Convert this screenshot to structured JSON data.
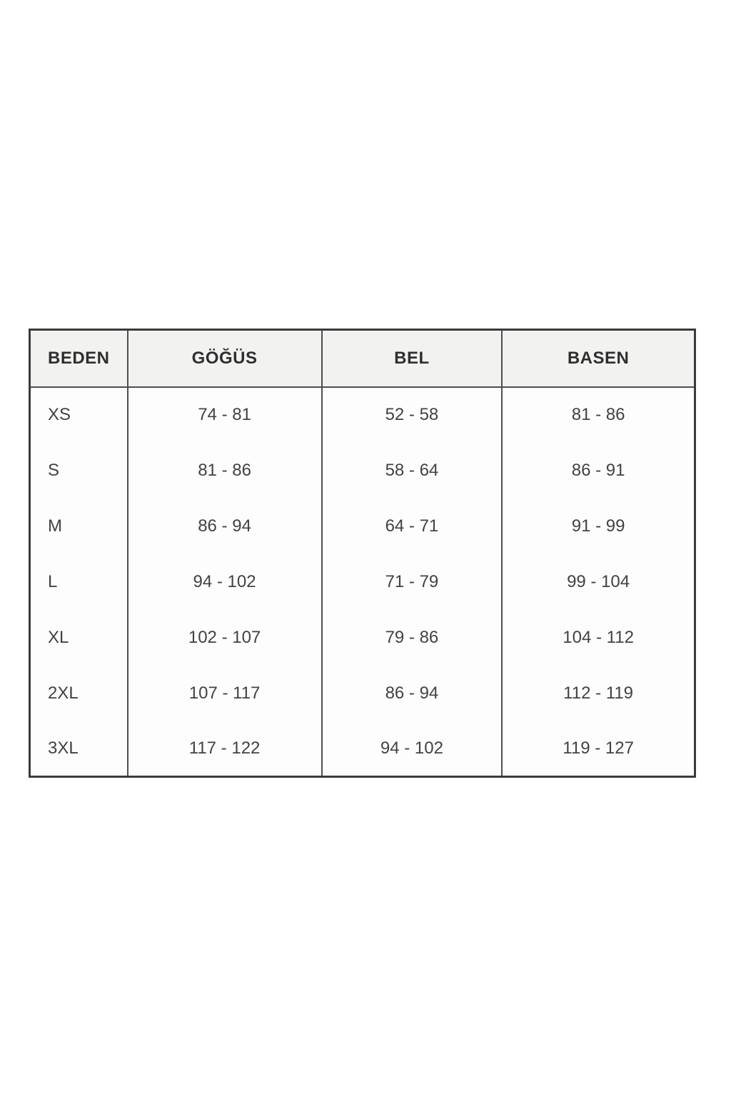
{
  "page": {
    "background": "#ffffff"
  },
  "size_chart": {
    "colors": {
      "border_outer": "#3b3b3b",
      "border_inner": "#4e4e4e",
      "header_background": "#f2f2f1",
      "body_background": "#fdfdfd",
      "header_text": "#2f2f2f",
      "body_text": "#424242"
    },
    "headers": [
      "BEDEN",
      "GÖĞÜS",
      "BEL",
      "BASEN"
    ],
    "rows": [
      {
        "size": "XS",
        "gogus": "74 - 81",
        "bel": "52 - 58",
        "basen": "81 - 86"
      },
      {
        "size": "S",
        "gogus": "81 - 86",
        "bel": "58 - 64",
        "basen": "86 - 91"
      },
      {
        "size": "M",
        "gogus": "86 - 94",
        "bel": "64 - 71",
        "basen": "91 - 99"
      },
      {
        "size": "L",
        "gogus": "94 - 102",
        "bel": "71 - 79",
        "basen": "99 - 104"
      },
      {
        "size": "XL",
        "gogus": "102 - 107",
        "bel": "79 - 86",
        "basen": "104 - 112"
      },
      {
        "size": "2XL",
        "gogus": "107 - 117",
        "bel": "86 - 94",
        "basen": "112 - 119"
      },
      {
        "size": "3XL",
        "gogus": "117 - 122",
        "bel": "94 - 102",
        "basen": "119 - 127"
      }
    ]
  }
}
